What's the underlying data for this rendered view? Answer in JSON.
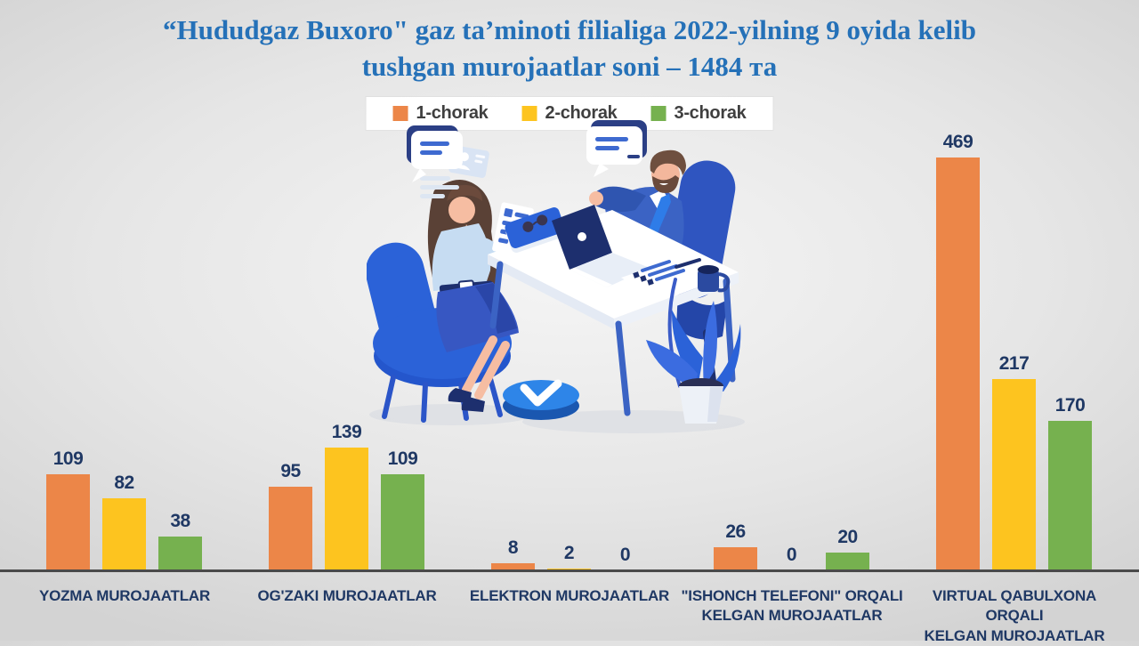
{
  "slide": {
    "title_line1": "“Hududgaz Buxoro\" gaz ta’minoti filialiga 2022-yilning 9 oyida kelib",
    "title_line2": "tushgan murojaatlar soni – 1484 та",
    "title_color": "#2571B8",
    "background_color": "#E6E6E6"
  },
  "legend": {
    "items": [
      {
        "label": "1-chorak",
        "color": "#EC8648"
      },
      {
        "label": "2-chorak",
        "color": "#FDC41F"
      },
      {
        "label": "3-chorak",
        "color": "#76B14F"
      }
    ]
  },
  "chart_data": {
    "type": "bar",
    "title": "“Hududgaz Buxoro\" gaz ta’minoti filialiga 2022-yilning 9 oyida kelib tushgan murojaatlar soni – 1484 та",
    "total": 1484,
    "categories": [
      "YOZMA MUROJAATLAR",
      "OG'ZAKI MUROJAATLAR",
      "ELEKTRON MUROJAATLAR",
      "\"ISHONCH TELEFONI\" ORQALI KELGAN MUROJAATLAR",
      "VIRTUAL QABULXONA ORQALI KELGAN MUROJAATLAR"
    ],
    "categories_lines": [
      [
        "YOZMA MUROJAATLAR"
      ],
      [
        "OG'ZAKI MUROJAATLAR"
      ],
      [
        "ELEKTRON MUROJAATLAR"
      ],
      [
        "\"ISHONCH TELEFONI\" ORQALI",
        "KELGAN MUROJAATLAR"
      ],
      [
        "VIRTUAL QABULXONA ORQALI",
        "KELGAN MUROJAATLAR"
      ]
    ],
    "series": [
      {
        "name": "1-chorak",
        "color": "#EC8648",
        "values": [
          109,
          95,
          8,
          26,
          469
        ]
      },
      {
        "name": "2-chorak",
        "color": "#FDC41F",
        "values": [
          82,
          139,
          2,
          0,
          217
        ]
      },
      {
        "name": "3-chorak",
        "color": "#76B14F",
        "values": [
          38,
          109,
          0,
          20,
          170
        ]
      }
    ],
    "ylim": [
      0,
      469
    ],
    "grid": false,
    "legend_position": "top-center",
    "value_labels_shown": true,
    "value_label_color": "#1F3864",
    "category_label_color": "#1F3864",
    "axis_line_color": "#4A4A4A"
  },
  "illustration": {
    "icons": [
      "speech-bubble-icon",
      "id-card-icon",
      "laptop-icon",
      "checklist-icon",
      "mug-icon",
      "potted-plant-icon",
      "clock-check-icon"
    ]
  }
}
